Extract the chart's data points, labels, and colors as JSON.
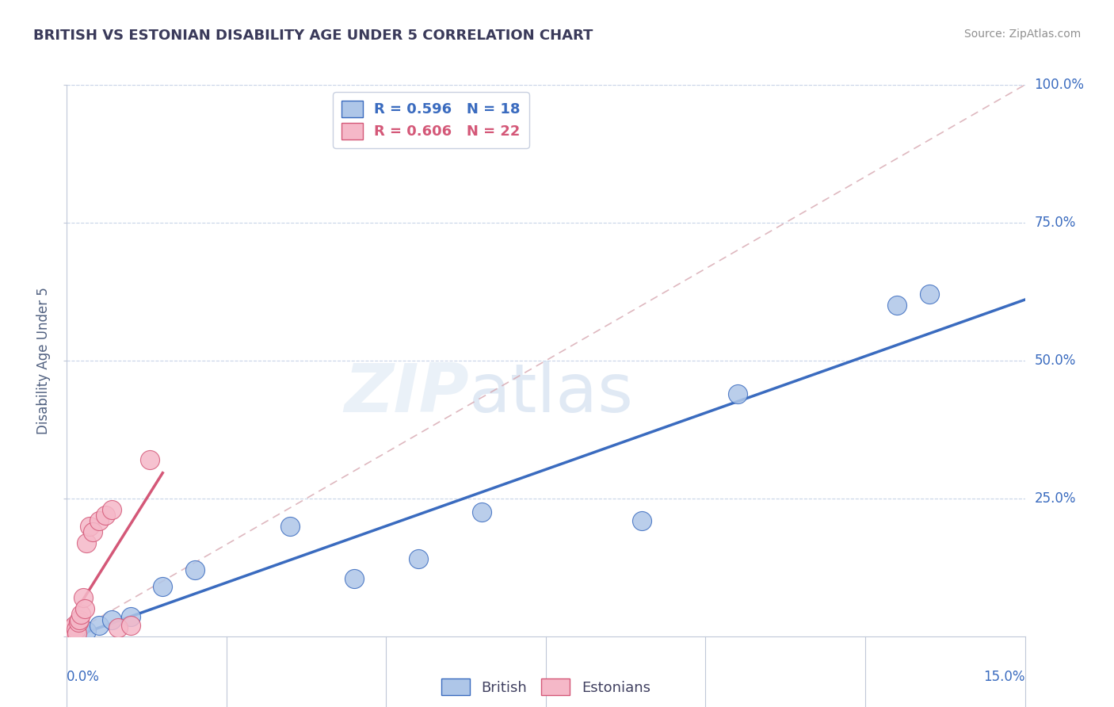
{
  "title": "BRITISH VS ESTONIAN DISABILITY AGE UNDER 5 CORRELATION CHART",
  "source": "Source: ZipAtlas.com",
  "ylabel": "Disability Age Under 5",
  "xlim": [
    0.0,
    15.0
  ],
  "ylim": [
    0.0,
    100.0
  ],
  "ytick_values": [
    0,
    25,
    50,
    75,
    100
  ],
  "ytick_labels": [
    "",
    "25.0%",
    "50.0%",
    "75.0%",
    "100.0%"
  ],
  "british_color": "#aec6e8",
  "estonian_color": "#f5b8c8",
  "british_line_color": "#3a6bbf",
  "estonian_line_color": "#d45878",
  "diag_line_color": "#d4a0aa",
  "legend_R_british": "R = 0.596",
  "legend_N_british": "N = 18",
  "legend_R_estonian": "R = 0.606",
  "legend_N_estonian": "N = 22",
  "british_x": [
    0.05,
    0.1,
    0.15,
    0.2,
    0.3,
    0.5,
    0.7,
    1.0,
    1.5,
    2.0,
    3.5,
    4.5,
    5.5,
    6.5,
    9.0,
    10.5,
    13.0,
    13.5
  ],
  "british_y": [
    0.5,
    1.0,
    0.8,
    1.5,
    1.0,
    2.0,
    3.0,
    3.5,
    9.0,
    12.0,
    20.0,
    10.5,
    14.0,
    22.5,
    21.0,
    44.0,
    60.0,
    62.0
  ],
  "estonian_x": [
    0.02,
    0.04,
    0.06,
    0.08,
    0.1,
    0.12,
    0.14,
    0.16,
    0.18,
    0.2,
    0.22,
    0.25,
    0.28,
    0.3,
    0.35,
    0.4,
    0.5,
    0.6,
    0.7,
    0.8,
    1.0,
    1.3
  ],
  "estonian_y": [
    0.3,
    0.5,
    1.0,
    1.5,
    0.8,
    2.0,
    1.2,
    0.5,
    2.5,
    3.0,
    4.0,
    7.0,
    5.0,
    17.0,
    20.0,
    19.0,
    21.0,
    22.0,
    23.0,
    1.5,
    2.0,
    32.0
  ],
  "watermark_zip": "ZIP",
  "watermark_atlas": "atlas",
  "background_color": "#ffffff",
  "grid_color": "#c8d4e8",
  "title_color": "#3a3a5a",
  "british_label_color": "#3a6bbf",
  "estonian_label_color": "#d45878",
  "tick_color": "#3a6bbf",
  "ylabel_color": "#506080"
}
